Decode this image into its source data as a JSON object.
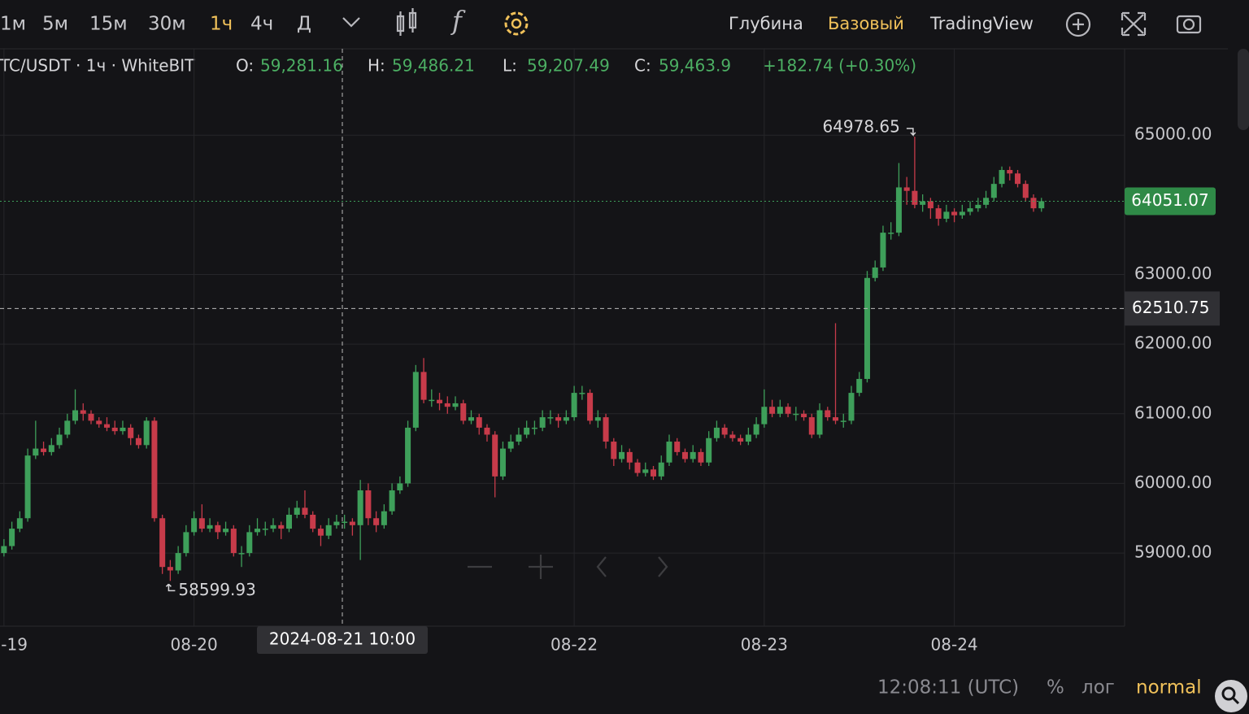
{
  "toolbar": {
    "intervals": [
      "1м",
      "5м",
      "15м",
      "30м",
      "1ч",
      "4ч",
      "Д"
    ],
    "active_interval": 4,
    "views": [
      "Глубина",
      "Базовый",
      "TradingView"
    ],
    "active_view": 1
  },
  "legend": {
    "symbol": "TC/USDT · 1ч · WhiteBIT",
    "items": [
      {
        "label": "O:",
        "value": "59,281.16"
      },
      {
        "label": "H:",
        "value": "59,486.21"
      },
      {
        "label": "L:",
        "value": "59,207.49"
      },
      {
        "label": "C:",
        "value": "59,463.9"
      }
    ],
    "change": "+182.74 (+0.30%)"
  },
  "footer": {
    "time": "12:08:11 (UTC)",
    "percent": "%",
    "log": "лог",
    "mode": "normal"
  },
  "chart_data": {
    "type": "candlestick",
    "up_color": "#3e9f5a",
    "down_color": "#c73b4a",
    "grid": true,
    "ylim": [
      57950,
      66240
    ],
    "xlim": [
      -0.5,
      141.5
    ],
    "yticks": [
      {
        "value": 59000,
        "label": "59000.00"
      },
      {
        "value": 60000,
        "label": "60000.00"
      },
      {
        "value": 61000,
        "label": "61000.00"
      },
      {
        "value": 62000,
        "label": "62000.00"
      },
      {
        "value": 63000,
        "label": "63000.00"
      },
      {
        "value": 65000,
        "label": "65000.00"
      }
    ],
    "xticks": [
      {
        "value": 0,
        "label": "08-19"
      },
      {
        "value": 24,
        "label": "08-20"
      },
      {
        "value": 72,
        "label": "08-22"
      },
      {
        "value": 96,
        "label": "08-23"
      },
      {
        "value": 120,
        "label": "08-24"
      }
    ],
    "crosshair": {
      "price": 62510.75,
      "time": "2024-08-21 10:00"
    },
    "high_index": 115,
    "low_index": 21,
    "open": [
      59000,
      59100,
      59350,
      59500,
      60400,
      60500,
      60450,
      60550,
      60700,
      60900,
      61050,
      61000,
      60900,
      60850,
      60800,
      60750,
      60800,
      60650,
      60550,
      60900,
      59500,
      58800,
      58750,
      59000,
      59300,
      59500,
      59350,
      59400,
      59300,
      59350,
      59000,
      59000,
      59300,
      59350,
      59350,
      59400,
      59350,
      59550,
      59650,
      59550,
      59350,
      59250,
      59400,
      59450,
      59450,
      59400,
      59900,
      59500,
      59400,
      59600,
      59900,
      60000,
      60800,
      61600,
      61200,
      61200,
      61150,
      61100,
      61150,
      60900,
      60950,
      60800,
      60700,
      60100,
      60500,
      60600,
      60700,
      60800,
      60800,
      60950,
      60950,
      60900,
      60950,
      61300,
      61300,
      60900,
      60950,
      60600,
      60350,
      60450,
      60300,
      60150,
      60200,
      60100,
      60300,
      60600,
      60450,
      60350,
      60450,
      60300,
      60650,
      60800,
      60700,
      60650,
      60600,
      60700,
      60850,
      61100,
      61000,
      61100,
      61000,
      61000,
      60950,
      60700,
      61050,
      60950,
      60900,
      60900,
      61300,
      61500,
      62950,
      63100,
      63600,
      63600,
      64250,
      64200,
      64000,
      64050,
      63950,
      63800,
      63900,
      63850,
      63900,
      63950,
      64000,
      64100,
      64300,
      64500,
      64450,
      64300,
      64100,
      63950
    ],
    "high": [
      59200,
      59450,
      59600,
      60500,
      60900,
      60600,
      60650,
      60800,
      61000,
      61350,
      61150,
      61050,
      60950,
      60950,
      60900,
      60900,
      60850,
      60700,
      60950,
      60950,
      59550,
      58900,
      59100,
      59400,
      59600,
      59700,
      59500,
      59450,
      59450,
      59400,
      59100,
      59400,
      59500,
      59450,
      59500,
      59450,
      59650,
      59750,
      59900,
      59600,
      59400,
      59500,
      59550,
      59550,
      59500,
      60050,
      60000,
      59600,
      59700,
      60000,
      60100,
      60900,
      61700,
      61800,
      61350,
      61300,
      61250,
      61250,
      61200,
      61050,
      61000,
      60850,
      60750,
      60600,
      60700,
      60800,
      60900,
      60900,
      61050,
      61050,
      61000,
      61050,
      61400,
      61400,
      61350,
      61050,
      61000,
      60650,
      60550,
      60500,
      60350,
      60300,
      60250,
      60400,
      60700,
      60650,
      60500,
      60550,
      60500,
      60750,
      60900,
      60850,
      60750,
      60700,
      60800,
      60950,
      61350,
      61200,
      61200,
      61150,
      61100,
      61050,
      61000,
      61150,
      61100,
      62300,
      61000,
      61400,
      61600,
      63050,
      63200,
      63700,
      63750,
      64600,
      64400,
      64978.65,
      64150,
      64100,
      64000,
      64000,
      63950,
      64000,
      64050,
      64100,
      64200,
      64400,
      64550,
      64550,
      64500,
      64350,
      64150,
      64100
    ],
    "low": [
      58950,
      59050,
      59300,
      59450,
      60350,
      60400,
      60400,
      60500,
      60650,
      60850,
      60900,
      60850,
      60800,
      60750,
      60700,
      60700,
      60550,
      60500,
      60500,
      59450,
      58700,
      58599.93,
      58700,
      58950,
      59250,
      59300,
      59300,
      59200,
      59250,
      58950,
      58800,
      58950,
      59250,
      59250,
      59300,
      59200,
      59300,
      59500,
      59500,
      59300,
      59100,
      59200,
      59350,
      59350,
      59250,
      58900,
      59400,
      59300,
      59350,
      59550,
      59850,
      59950,
      60750,
      61150,
      61100,
      61050,
      61000,
      61050,
      60850,
      60850,
      60700,
      60600,
      59800,
      60050,
      60450,
      60550,
      60650,
      60700,
      60750,
      60850,
      60800,
      60850,
      60900,
      61200,
      60850,
      60800,
      60500,
      60250,
      60300,
      60200,
      60100,
      60100,
      60050,
      60050,
      60250,
      60400,
      60300,
      60300,
      60250,
      60250,
      60600,
      60650,
      60600,
      60550,
      60550,
      60650,
      60800,
      60950,
      60950,
      60950,
      60900,
      60900,
      60650,
      60650,
      60900,
      60850,
      60800,
      60850,
      61250,
      61450,
      62900,
      63050,
      63500,
      63550,
      64000,
      63950,
      63900,
      63800,
      63700,
      63750,
      63750,
      63800,
      63850,
      63900,
      63950,
      64050,
      64250,
      64350,
      64250,
      64050,
      63900,
      63900
    ],
    "close": [
      59100,
      59350,
      59500,
      60400,
      60500,
      60450,
      60550,
      60700,
      60900,
      61050,
      61000,
      60900,
      60850,
      60800,
      60750,
      60800,
      60650,
      60550,
      60900,
      59500,
      58800,
      58750,
      59000,
      59300,
      59500,
      59350,
      59400,
      59300,
      59350,
      59000,
      59000,
      59300,
      59350,
      59350,
      59400,
      59350,
      59550,
      59650,
      59550,
      59350,
      59250,
      59400,
      59450,
      59450,
      59400,
      59900,
      59500,
      59400,
      59600,
      59900,
      60000,
      60800,
      61600,
      61200,
      61200,
      61150,
      61100,
      61150,
      60900,
      60950,
      60800,
      60700,
      60100,
      60500,
      60600,
      60700,
      60800,
      60800,
      60950,
      60950,
      60900,
      60950,
      61300,
      61300,
      60900,
      60950,
      60600,
      60350,
      60450,
      60300,
      60150,
      60200,
      60100,
      60300,
      60600,
      60450,
      60350,
      60450,
      60300,
      60650,
      60800,
      60700,
      60650,
      60600,
      60700,
      60850,
      61100,
      61000,
      61100,
      61000,
      61000,
      60950,
      60700,
      61050,
      60950,
      60900,
      60900,
      61300,
      61500,
      62950,
      63100,
      63600,
      63600,
      64250,
      64200,
      64000,
      64050,
      63950,
      63800,
      63900,
      63850,
      63900,
      63950,
      64000,
      64100,
      64300,
      64500,
      64450,
      64300,
      64100,
      63950,
      64051.07
    ]
  }
}
